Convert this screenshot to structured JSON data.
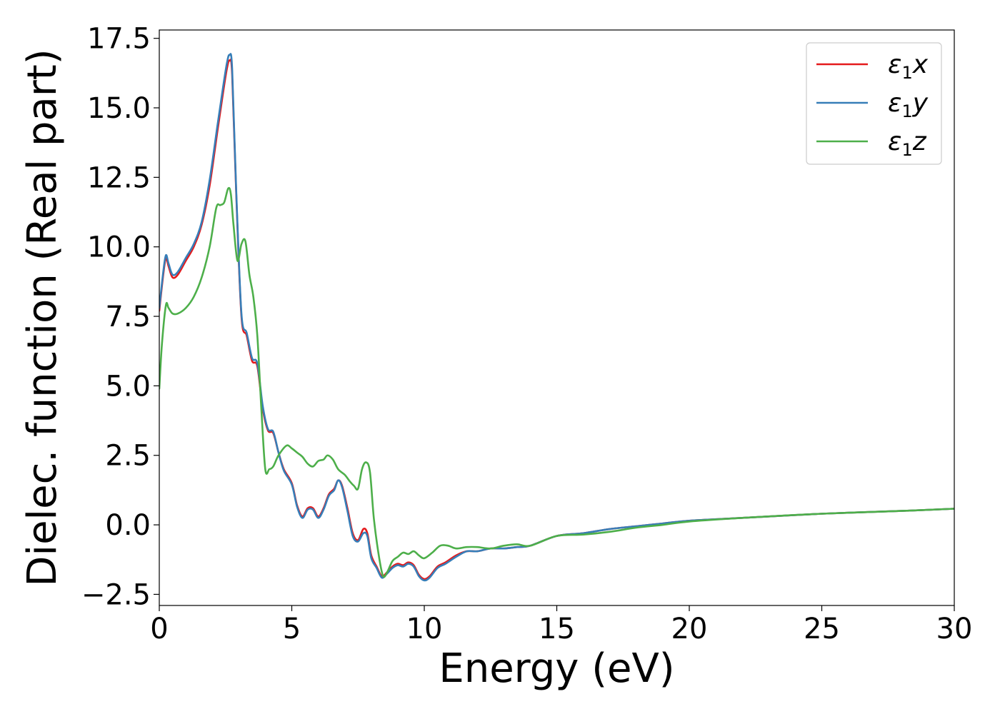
{
  "chart_data": {
    "type": "line",
    "title": "",
    "xlabel": "Energy (eV)",
    "ylabel": "Dielec. function (Real part)",
    "xlim": [
      0,
      30
    ],
    "ylim": [
      -2.9,
      17.8
    ],
    "xticks": [
      0,
      5,
      10,
      15,
      20,
      25,
      30
    ],
    "xtick_labels": [
      "0",
      "5",
      "10",
      "15",
      "20",
      "25",
      "30"
    ],
    "yticks": [
      -2.5,
      0.0,
      2.5,
      5.0,
      7.5,
      10.0,
      12.5,
      15.0,
      17.5
    ],
    "ytick_labels": [
      "−2.5",
      "0.0",
      "2.5",
      "5.0",
      "7.5",
      "10.0",
      "12.5",
      "15.0",
      "17.5"
    ],
    "grid": false,
    "legend_position": "top-right",
    "series": [
      {
        "name": "ε₁x",
        "label_base": "ε",
        "label_sub": "1",
        "label_suffix": "x",
        "color": "#e41a1c",
        "x": [
          0,
          0.15,
          0.25,
          0.35,
          0.5,
          0.7,
          1.0,
          1.3,
          1.6,
          1.9,
          2.2,
          2.4,
          2.55,
          2.65,
          2.75,
          2.9,
          3.1,
          3.3,
          3.5,
          3.7,
          3.9,
          4.1,
          4.3,
          4.5,
          4.7,
          5.0,
          5.2,
          5.4,
          5.6,
          5.8,
          6.0,
          6.2,
          6.4,
          6.6,
          6.75,
          6.9,
          7.1,
          7.3,
          7.5,
          7.7,
          7.85,
          8.0,
          8.2,
          8.4,
          8.6,
          8.8,
          9.0,
          9.2,
          9.4,
          9.6,
          9.8,
          10.0,
          10.2,
          10.5,
          10.8,
          11.2,
          11.6,
          12.0,
          12.5,
          13.0,
          13.5,
          14.0,
          15.0,
          16.0,
          17.0,
          18.0,
          19.0,
          20.0,
          22.0,
          25.0,
          28.0,
          30.0
        ],
        "y": [
          7.7,
          9.0,
          9.6,
          9.3,
          8.9,
          9.0,
          9.5,
          10.0,
          10.8,
          12.2,
          14.2,
          15.5,
          16.4,
          16.7,
          16.2,
          12.0,
          7.5,
          6.8,
          5.9,
          5.7,
          4.2,
          3.4,
          3.3,
          2.6,
          2.0,
          1.5,
          0.7,
          0.3,
          0.6,
          0.6,
          0.3,
          0.6,
          1.1,
          1.3,
          1.6,
          1.4,
          0.6,
          -0.3,
          -0.55,
          -0.15,
          -0.3,
          -1.1,
          -1.5,
          -1.85,
          -1.7,
          -1.5,
          -1.4,
          -1.45,
          -1.35,
          -1.45,
          -1.8,
          -1.95,
          -1.85,
          -1.5,
          -1.35,
          -1.1,
          -0.95,
          -0.95,
          -0.85,
          -0.85,
          -0.8,
          -0.75,
          -0.4,
          -0.3,
          -0.15,
          -0.05,
          0.05,
          0.15,
          0.25,
          0.4,
          0.5,
          0.58
        ]
      },
      {
        "name": "ε₁y",
        "label_base": "ε",
        "label_sub": "1",
        "label_suffix": "y",
        "color": "#377eb8",
        "x": [
          0,
          0.15,
          0.25,
          0.35,
          0.5,
          0.7,
          1.0,
          1.3,
          1.6,
          1.9,
          2.2,
          2.4,
          2.55,
          2.65,
          2.75,
          2.9,
          3.1,
          3.3,
          3.5,
          3.7,
          3.9,
          4.1,
          4.3,
          4.5,
          4.7,
          5.0,
          5.2,
          5.4,
          5.6,
          5.8,
          6.0,
          6.2,
          6.4,
          6.6,
          6.75,
          6.9,
          7.1,
          7.3,
          7.5,
          7.7,
          7.85,
          8.0,
          8.2,
          8.4,
          8.6,
          8.8,
          9.0,
          9.2,
          9.4,
          9.6,
          9.8,
          10.0,
          10.2,
          10.5,
          10.8,
          11.2,
          11.6,
          12.0,
          12.5,
          13.0,
          13.5,
          14.0,
          15.0,
          16.0,
          17.0,
          18.0,
          19.0,
          20.0,
          22.0,
          25.0,
          28.0,
          30.0
        ],
        "y": [
          7.8,
          9.1,
          9.7,
          9.4,
          9.0,
          9.1,
          9.6,
          10.1,
          10.9,
          12.4,
          14.4,
          15.7,
          16.6,
          16.9,
          16.4,
          12.1,
          7.6,
          6.9,
          6.0,
          5.8,
          4.3,
          3.45,
          3.35,
          2.6,
          1.95,
          1.45,
          0.65,
          0.25,
          0.55,
          0.55,
          0.25,
          0.55,
          1.05,
          1.25,
          1.6,
          1.35,
          0.5,
          -0.4,
          -0.6,
          -0.3,
          -0.4,
          -1.2,
          -1.55,
          -1.9,
          -1.75,
          -1.55,
          -1.45,
          -1.5,
          -1.4,
          -1.5,
          -1.85,
          -2.0,
          -1.9,
          -1.55,
          -1.4,
          -1.15,
          -0.95,
          -0.95,
          -0.85,
          -0.85,
          -0.8,
          -0.75,
          -0.4,
          -0.3,
          -0.15,
          -0.05,
          0.05,
          0.15,
          0.25,
          0.4,
          0.5,
          0.58
        ]
      },
      {
        "name": "ε₁z",
        "label_base": "ε",
        "label_sub": "1",
        "label_suffix": "z",
        "color": "#4daf4a",
        "x": [
          0,
          0.1,
          0.25,
          0.35,
          0.5,
          0.7,
          1.0,
          1.3,
          1.6,
          1.9,
          2.15,
          2.3,
          2.45,
          2.6,
          2.7,
          2.8,
          2.95,
          3.1,
          3.25,
          3.4,
          3.55,
          3.7,
          3.85,
          4.0,
          4.15,
          4.3,
          4.5,
          4.8,
          5.0,
          5.2,
          5.4,
          5.6,
          5.8,
          6.0,
          6.2,
          6.35,
          6.55,
          6.75,
          7.0,
          7.2,
          7.35,
          7.5,
          7.65,
          7.8,
          7.95,
          8.1,
          8.3,
          8.45,
          8.6,
          8.8,
          9.0,
          9.2,
          9.4,
          9.6,
          9.8,
          10.0,
          10.3,
          10.6,
          10.9,
          11.2,
          11.6,
          12.0,
          12.5,
          13.0,
          13.5,
          14.0,
          15.0,
          16.0,
          17.0,
          18.0,
          19.0,
          20.0,
          22.0,
          25.0,
          28.0,
          30.0
        ],
        "y": [
          4.9,
          6.5,
          7.9,
          7.8,
          7.6,
          7.6,
          7.8,
          8.2,
          8.9,
          10.0,
          11.4,
          11.5,
          11.6,
          12.1,
          11.9,
          10.8,
          9.5,
          10.1,
          10.2,
          9.0,
          8.2,
          6.8,
          4.2,
          2.0,
          2.0,
          2.1,
          2.5,
          2.85,
          2.75,
          2.6,
          2.45,
          2.2,
          2.1,
          2.3,
          2.35,
          2.5,
          2.35,
          2.0,
          1.8,
          1.55,
          1.4,
          1.3,
          2.0,
          2.25,
          1.9,
          0.2,
          -1.2,
          -1.85,
          -1.7,
          -1.3,
          -1.15,
          -1.0,
          -1.05,
          -0.95,
          -1.1,
          -1.2,
          -1.0,
          -0.75,
          -0.75,
          -0.85,
          -0.8,
          -0.8,
          -0.85,
          -0.75,
          -0.7,
          -0.75,
          -0.4,
          -0.35,
          -0.25,
          -0.1,
          0.0,
          0.12,
          0.25,
          0.4,
          0.5,
          0.58
        ]
      }
    ]
  }
}
